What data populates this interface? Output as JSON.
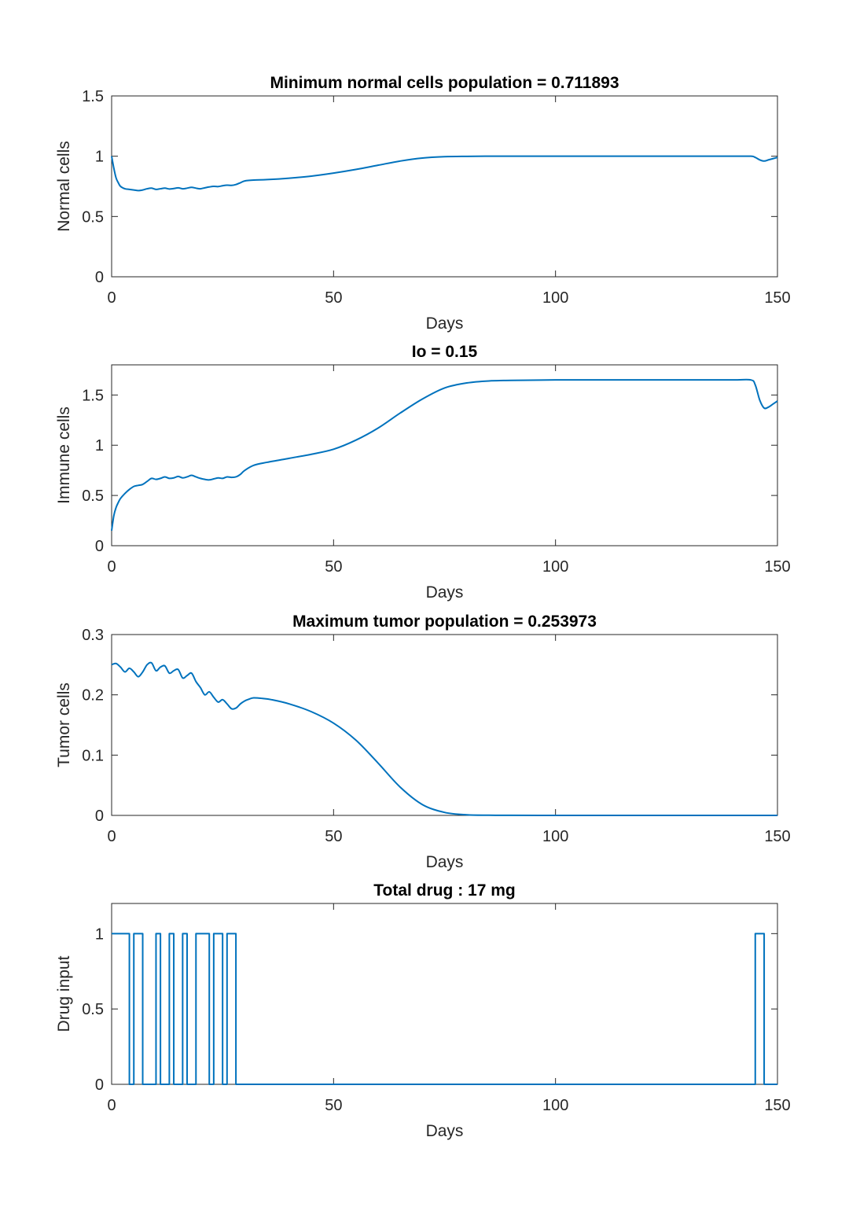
{
  "colors": {
    "series": "#0072BD",
    "axes": "#262626",
    "title": "#000000",
    "background": "#ffffff"
  },
  "chart_data": [
    {
      "type": "line",
      "title": "Minimum normal cells population = 0.711893",
      "xlabel": "Days",
      "ylabel": "Normal cells",
      "xlim": [
        0,
        150
      ],
      "ylim": [
        0,
        1.5
      ],
      "xticks": [
        0,
        50,
        100,
        150
      ],
      "yticks": [
        0,
        0.5,
        1,
        1.5
      ],
      "xtick_labels": [
        "0",
        "50",
        "100",
        "150"
      ],
      "ytick_labels": [
        "0",
        "0.5",
        "1",
        "1.5"
      ],
      "grid": false,
      "series": [
        {
          "x": [
            0,
            0.5,
            1,
            1.5,
            2,
            3,
            4,
            5,
            6,
            7,
            8,
            9,
            10,
            11,
            12,
            13,
            14,
            15,
            16,
            17,
            18,
            19,
            20,
            21,
            22,
            23,
            24,
            25,
            26,
            27,
            28,
            29,
            30,
            32,
            35,
            40,
            45,
            50,
            55,
            60,
            65,
            70,
            75,
            80,
            85,
            90,
            100,
            110,
            120,
            130,
            140,
            144,
            145,
            146,
            147,
            148,
            149,
            150
          ],
          "y": [
            1.0,
            0.9,
            0.82,
            0.78,
            0.75,
            0.73,
            0.725,
            0.72,
            0.715,
            0.72,
            0.73,
            0.735,
            0.725,
            0.73,
            0.735,
            0.728,
            0.732,
            0.738,
            0.73,
            0.735,
            0.742,
            0.735,
            0.73,
            0.738,
            0.745,
            0.75,
            0.748,
            0.755,
            0.76,
            0.758,
            0.765,
            0.78,
            0.795,
            0.802,
            0.806,
            0.818,
            0.835,
            0.86,
            0.89,
            0.925,
            0.96,
            0.985,
            0.996,
            0.999,
            1.0,
            1.0,
            1.0,
            1.0,
            1.0,
            1.0,
            1.0,
            1.0,
            0.99,
            0.97,
            0.96,
            0.97,
            0.98,
            0.99
          ]
        }
      ]
    },
    {
      "type": "line",
      "title": "Io = 0.15",
      "xlabel": "Days",
      "ylabel": "Immune cells",
      "xlim": [
        0,
        150
      ],
      "ylim": [
        0,
        1.8
      ],
      "xticks": [
        0,
        50,
        100,
        150
      ],
      "yticks": [
        0,
        0.5,
        1,
        1.5
      ],
      "xtick_labels": [
        "0",
        "50",
        "100",
        "150"
      ],
      "ytick_labels": [
        "0",
        "0.5",
        "1",
        "1.5"
      ],
      "grid": false,
      "series": [
        {
          "x": [
            0,
            0.5,
            1,
            1.5,
            2,
            3,
            4,
            5,
            6,
            7,
            8,
            9,
            10,
            11,
            12,
            13,
            14,
            15,
            16,
            17,
            18,
            19,
            20,
            21,
            22,
            23,
            24,
            25,
            26,
            27,
            28,
            29,
            30,
            32,
            35,
            40,
            45,
            50,
            55,
            60,
            65,
            70,
            75,
            80,
            85,
            90,
            100,
            110,
            120,
            130,
            140,
            144,
            145,
            146,
            147,
            148,
            149,
            150
          ],
          "y": [
            0.15,
            0.3,
            0.38,
            0.43,
            0.47,
            0.52,
            0.56,
            0.59,
            0.6,
            0.61,
            0.64,
            0.67,
            0.66,
            0.67,
            0.685,
            0.67,
            0.675,
            0.69,
            0.675,
            0.685,
            0.7,
            0.685,
            0.67,
            0.66,
            0.655,
            0.665,
            0.675,
            0.67,
            0.685,
            0.68,
            0.685,
            0.71,
            0.75,
            0.8,
            0.83,
            0.87,
            0.91,
            0.96,
            1.05,
            1.17,
            1.32,
            1.46,
            1.57,
            1.62,
            1.64,
            1.645,
            1.65,
            1.65,
            1.65,
            1.65,
            1.65,
            1.65,
            1.6,
            1.45,
            1.37,
            1.38,
            1.41,
            1.44
          ]
        }
      ]
    },
    {
      "type": "line",
      "title": "Maximum tumor population = 0.253973",
      "xlabel": "Days",
      "ylabel": "Tumor cells",
      "xlim": [
        0,
        150
      ],
      "ylim": [
        0,
        0.3
      ],
      "xticks": [
        0,
        50,
        100,
        150
      ],
      "yticks": [
        0,
        0.1,
        0.2,
        0.3
      ],
      "xtick_labels": [
        "0",
        "50",
        "100",
        "150"
      ],
      "ytick_labels": [
        "0",
        "0.1",
        "0.2",
        "0.3"
      ],
      "grid": false,
      "series": [
        {
          "x": [
            0,
            1,
            2,
            3,
            4,
            5,
            6,
            7,
            8,
            9,
            10,
            11,
            12,
            13,
            14,
            15,
            16,
            17,
            18,
            19,
            20,
            21,
            22,
            23,
            24,
            25,
            26,
            27,
            28,
            29,
            30,
            31,
            32,
            34,
            36,
            40,
            45,
            50,
            55,
            60,
            65,
            70,
            75,
            80,
            85,
            90,
            100,
            110,
            120,
            130,
            140,
            150
          ],
          "y": [
            0.25,
            0.252,
            0.246,
            0.238,
            0.244,
            0.238,
            0.23,
            0.238,
            0.25,
            0.253,
            0.24,
            0.246,
            0.248,
            0.236,
            0.24,
            0.242,
            0.228,
            0.232,
            0.236,
            0.222,
            0.212,
            0.2,
            0.205,
            0.196,
            0.188,
            0.192,
            0.185,
            0.177,
            0.178,
            0.185,
            0.19,
            0.193,
            0.195,
            0.194,
            0.192,
            0.185,
            0.172,
            0.153,
            0.125,
            0.087,
            0.047,
            0.018,
            0.005,
            0.001,
            0.0003,
            0.0001,
            0.0,
            0.0,
            0.0,
            0.0,
            0.0,
            0.0
          ]
        }
      ]
    },
    {
      "type": "line",
      "title": "Total drug : 17 mg",
      "xlabel": "Days",
      "ylabel": "Drug input",
      "xlim": [
        0,
        150
      ],
      "ylim": [
        0,
        1.2
      ],
      "xticks": [
        0,
        50,
        100,
        150
      ],
      "yticks": [
        0,
        0.5,
        1
      ],
      "xtick_labels": [
        "0",
        "50",
        "100",
        "150"
      ],
      "ytick_labels": [
        "0",
        "0.5",
        "1"
      ],
      "grid": false,
      "step": true,
      "series": [
        {
          "x": [
            0,
            4,
            5,
            7,
            10,
            11,
            13,
            14,
            16,
            17,
            19,
            22,
            23,
            25,
            26,
            28,
            145,
            147,
            150
          ],
          "y": [
            1,
            0,
            1,
            0,
            1,
            0,
            1,
            0,
            1,
            0,
            1,
            0,
            1,
            0,
            1,
            0,
            1,
            0,
            0
          ]
        }
      ]
    }
  ]
}
